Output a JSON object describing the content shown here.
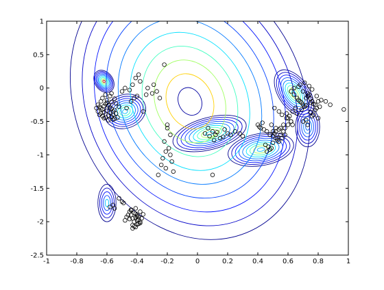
{
  "chart_data": {
    "type": "scatter",
    "title": "",
    "xlabel": "",
    "ylabel": "",
    "xlim": [
      -1,
      1
    ],
    "ylim": [
      -2.5,
      1
    ],
    "grid": false,
    "legend": "none",
    "x_ticks": [
      -1,
      -0.8,
      -0.6,
      -0.4,
      -0.2,
      0,
      0.2,
      0.4,
      0.6,
      0.8,
      1
    ],
    "x_tick_labels": [
      "-1",
      "-0.8",
      "-0.6",
      "-0.4",
      "-0.2",
      "0",
      "0.2",
      "0.4",
      "0.6",
      "0.8",
      "1"
    ],
    "y_ticks": [
      -2.5,
      -2,
      -1.5,
      -1,
      -0.5,
      0,
      0.5,
      1
    ],
    "y_tick_labels": [
      "-2.5",
      "-2",
      "-1.5",
      "-1",
      "-0.5",
      "0",
      "0.5",
      "1"
    ],
    "series": [
      {
        "marker": "open-circle",
        "color": "#000000",
        "x": [
          -0.66,
          -0.65,
          -0.64,
          -0.63,
          -0.62,
          -0.61,
          -0.6,
          -0.59,
          -0.58,
          -0.57,
          -0.56,
          -0.55,
          -0.66,
          -0.64,
          -0.62,
          -0.6,
          -0.58,
          -0.56,
          -0.54,
          -0.63,
          -0.61,
          -0.59,
          -0.57,
          -0.55,
          -0.65,
          -0.62,
          -0.59,
          -0.56,
          -0.53,
          -0.64,
          -0.6,
          -0.57,
          -0.54,
          -0.67,
          -0.63,
          -0.58,
          -0.55,
          -0.52,
          -0.61,
          -0.57,
          -0.5,
          -0.48,
          -0.45,
          -0.43,
          -0.4,
          -0.38,
          -0.44,
          -0.41,
          -0.47,
          -0.39,
          -0.36,
          -0.42,
          -0.34,
          -0.3,
          -0.27,
          -0.25,
          -0.33,
          -0.29,
          -0.22,
          -0.2,
          -0.19,
          -0.18,
          -0.21,
          -0.23,
          -0.17,
          -0.24,
          -0.16,
          -0.26,
          -0.2,
          -0.18,
          -0.22,
          -0.21,
          -0.45,
          -0.44,
          -0.43,
          -0.42,
          -0.41,
          -0.4,
          -0.39,
          -0.38,
          -0.43,
          -0.41,
          -0.4,
          -0.39,
          -0.42,
          -0.44,
          -0.41,
          -0.38,
          -0.4,
          -0.42,
          -0.43,
          -0.39,
          -0.37,
          -0.46,
          -0.36,
          -0.38,
          -0.4,
          -0.41,
          -0.45,
          -0.44,
          -0.48,
          -0.47,
          -0.5,
          -0.52,
          -0.49,
          -0.56,
          -0.55,
          -0.58,
          0.05,
          0.08,
          0.1,
          0.12,
          0.15,
          0.18,
          0.2,
          0.07,
          0.13,
          0.17,
          0.22,
          0.25,
          0.28,
          0.3,
          0.11,
          0.4,
          0.42,
          0.44,
          0.46,
          0.48,
          0.5,
          0.52,
          0.54,
          0.45,
          0.47,
          0.49,
          0.51,
          0.53,
          0.41,
          0.43,
          0.55,
          0.57,
          0.5,
          0.52,
          0.48,
          0.46,
          0.58,
          0.56,
          0.54,
          0.6,
          0.62,
          0.61,
          0.59,
          0.63,
          0.62,
          0.64,
          0.66,
          0.68,
          0.7,
          0.72,
          0.74,
          0.76,
          0.78,
          0.65,
          0.67,
          0.69,
          0.71,
          0.73,
          0.75,
          0.77,
          0.79,
          0.8,
          0.63,
          0.66,
          0.69,
          0.72,
          0.75,
          0.78,
          0.81,
          0.64,
          0.67,
          0.7,
          0.73,
          0.76,
          0.79,
          0.82,
          0.68,
          0.71,
          0.74,
          0.77,
          0.8,
          0.7,
          0.73,
          0.76,
          0.72,
          0.75,
          0.85,
          0.88,
          0.97,
          0.6,
          0.58,
          0.57,
          0.55,
          0.53,
          0.62,
          0.59,
          0.56,
          0.54,
          0.51,
          0.52,
          0.49,
          0.5,
          0.1
        ],
        "y": [
          -0.25,
          -0.28,
          -0.3,
          -0.32,
          -0.27,
          -0.24,
          -0.22,
          -0.26,
          -0.29,
          -0.31,
          -0.35,
          -0.33,
          -0.35,
          -0.38,
          -0.36,
          -0.34,
          -0.37,
          -0.4,
          -0.38,
          -0.42,
          -0.44,
          -0.41,
          -0.43,
          -0.46,
          -0.4,
          -0.45,
          -0.48,
          -0.47,
          -0.44,
          -0.2,
          -0.18,
          -0.21,
          -0.23,
          -0.3,
          -0.15,
          -0.12,
          -0.16,
          -0.28,
          -0.1,
          -0.08,
          -0.05,
          0.0,
          -0.03,
          0.05,
          -0.12,
          0.1,
          -0.2,
          0.15,
          -0.3,
          0.2,
          -0.35,
          -0.15,
          -0.1,
          -0.08,
          -0.05,
          -0.15,
          0.0,
          0.05,
          0.35,
          -0.55,
          -0.9,
          -1.0,
          -0.95,
          -1.05,
          -1.1,
          -1.15,
          -1.25,
          -1.3,
          -0.6,
          -0.7,
          -0.8,
          -1.2,
          -1.85,
          -1.9,
          -1.95,
          -2.0,
          -1.88,
          -1.92,
          -1.97,
          -2.02,
          -2.05,
          -2.08,
          -1.98,
          -1.93,
          -1.87,
          -1.82,
          -1.8,
          -1.85,
          -1.9,
          -2.07,
          -2.1,
          -2.03,
          -1.95,
          -1.9,
          -1.89,
          -2.0,
          -2.04,
          -1.94,
          -1.96,
          -1.83,
          -1.98,
          -1.93,
          -1.7,
          -1.65,
          -1.72,
          -1.75,
          -1.8,
          -1.78,
          -0.68,
          -0.72,
          -0.65,
          -0.7,
          -0.75,
          -0.62,
          -0.68,
          -0.6,
          -0.66,
          -0.73,
          -0.7,
          -0.65,
          -0.68,
          -0.72,
          -0.78,
          -0.55,
          -0.6,
          -0.62,
          -0.65,
          -0.7,
          -0.72,
          -0.75,
          -0.8,
          -0.85,
          -0.88,
          -0.9,
          -0.68,
          -0.78,
          -0.58,
          -0.52,
          -0.6,
          -0.55,
          -0.82,
          -0.65,
          -0.92,
          -0.95,
          -0.7,
          -0.75,
          -0.62,
          -0.45,
          -0.5,
          -0.42,
          -0.38,
          -0.55,
          -0.05,
          -0.1,
          -0.15,
          -0.2,
          -0.25,
          -0.15,
          -0.1,
          -0.2,
          -0.25,
          -0.3,
          -0.18,
          -0.22,
          -0.28,
          -0.12,
          -0.16,
          -0.24,
          -0.3,
          -0.2,
          -0.35,
          -0.38,
          -0.32,
          -0.26,
          -0.22,
          -0.33,
          -0.28,
          0.0,
          0.02,
          -0.05,
          -0.08,
          -0.02,
          -0.12,
          -0.18,
          0.05,
          0.08,
          0.03,
          -0.4,
          -0.45,
          -0.5,
          -0.55,
          -0.42,
          -0.48,
          -0.36,
          -0.2,
          -0.25,
          -0.32,
          -0.55,
          -0.6,
          -0.65,
          -0.7,
          -0.75,
          -0.5,
          -0.45,
          -0.4,
          -0.35,
          -0.3,
          -0.6,
          -0.55,
          -0.65,
          -1.3
        ]
      }
    ],
    "contours": [
      {
        "cx": -0.62,
        "cy": 0.1,
        "rx": 0.06,
        "ry": 0.18,
        "rot": -35,
        "levels": 9,
        "peak": "#c00000"
      },
      {
        "cx": -0.48,
        "cy": -0.35,
        "rx": 0.14,
        "ry": 0.25,
        "rot": -20,
        "levels": 8,
        "peak": "#00c0ff"
      },
      {
        "cx": 0.08,
        "cy": -0.68,
        "rx": 0.25,
        "ry": 0.24,
        "rot": -15,
        "levels": 9,
        "peak": "#00e0ff"
      },
      {
        "cx": 0.42,
        "cy": -0.92,
        "rx": 0.22,
        "ry": 0.24,
        "rot": -10,
        "levels": 9,
        "peak": "#00c0ff"
      },
      {
        "cx": 0.64,
        "cy": -0.08,
        "rx": 0.1,
        "ry": 0.4,
        "rot": -35,
        "levels": 9,
        "peak": "#00ffff"
      },
      {
        "cx": 0.73,
        "cy": -0.58,
        "rx": 0.08,
        "ry": 0.3,
        "rot": 0,
        "levels": 6,
        "peak": "#0060ff"
      },
      {
        "cx": -0.6,
        "cy": -1.72,
        "rx": 0.06,
        "ry": 0.28,
        "rot": 0,
        "levels": 5,
        "peak": "#00c0ff"
      },
      {
        "cx": -0.05,
        "cy": -0.2,
        "rx": 0.95,
        "ry": 1.7,
        "rot": 65,
        "levels": 10,
        "peak": "#0000a0"
      }
    ]
  }
}
